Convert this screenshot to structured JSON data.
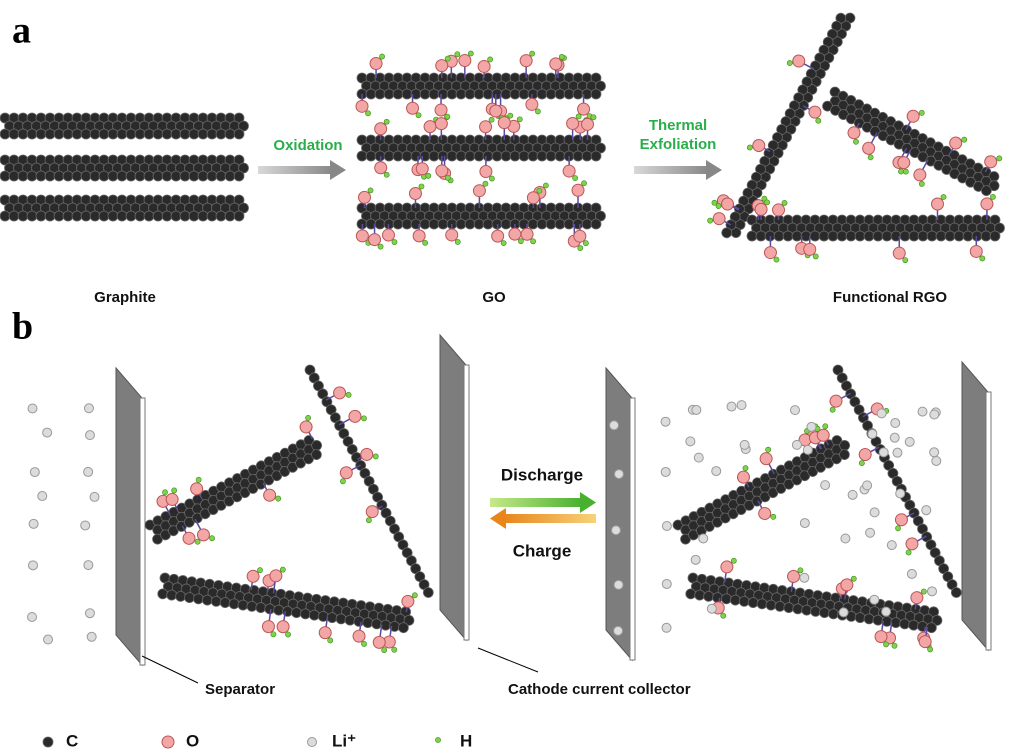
{
  "panel_a": {
    "label": "a",
    "oxidation": "Oxidation",
    "exfoliation": [
      "Thermal",
      "Exfoliation"
    ],
    "names": [
      "Graphite",
      "GO",
      "Functional RGO"
    ]
  },
  "panel_b": {
    "label": "b",
    "discharge": "Discharge",
    "charge": "Charge",
    "separator": "Separator",
    "collector": "Cathode current  collector"
  },
  "legend": [
    "C",
    "O",
    "Li⁺",
    "H"
  ]
}
